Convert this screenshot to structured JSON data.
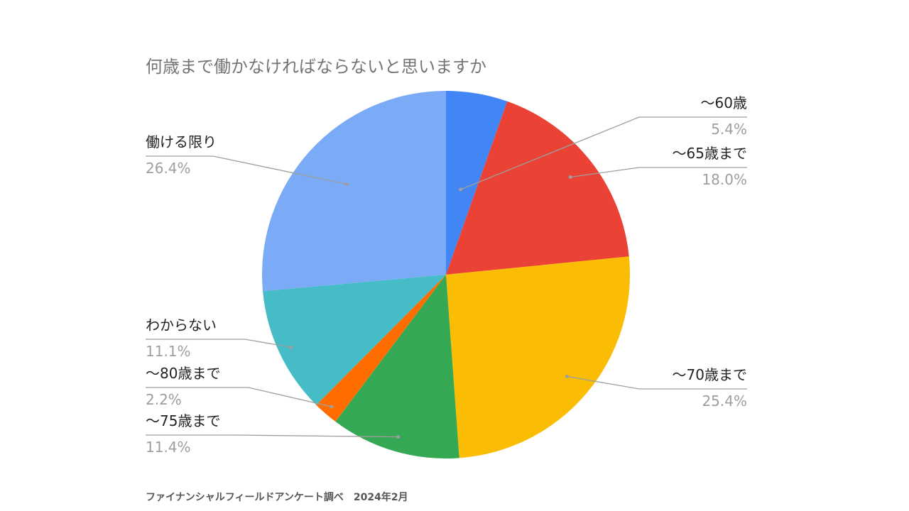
{
  "chart_data": {
    "type": "pie",
    "title": "何歳まで働かなければならないと思いますか",
    "slices": [
      {
        "label": "～60歳",
        "value": 5.4,
        "value_label": "5.4%",
        "color": "#4285f4"
      },
      {
        "label": "～65歳まで",
        "value": 18.0,
        "value_label": "18.0%",
        "color": "#ea4335"
      },
      {
        "label": "～70歳まで",
        "value": 25.4,
        "value_label": "25.4%",
        "color": "#fbbc04"
      },
      {
        "label": "～75歳まで",
        "value": 11.4,
        "value_label": "11.4%",
        "color": "#34a853"
      },
      {
        "label": "～80歳まで",
        "value": 2.2,
        "value_label": "2.2%",
        "color": "#ff6d01"
      },
      {
        "label": "わからない",
        "value": 11.1,
        "value_label": "11.1%",
        "color": "#46bdc6"
      },
      {
        "label": "働ける限り",
        "value": 26.4,
        "value_label": "26.4%",
        "color": "#7baaf7"
      }
    ],
    "start_angle": "12 o'clock",
    "direction": "clockwise"
  },
  "source_note": "ファイナンシャルフィールドアンケート調べ　2024年2月"
}
